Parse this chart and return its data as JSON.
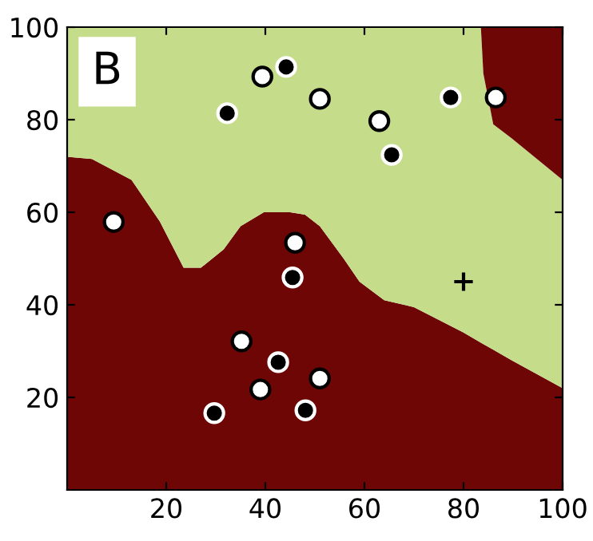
{
  "chart_data": {
    "type": "area",
    "stacked": true,
    "title": "B",
    "xlim": [
      0,
      100
    ],
    "ylim": [
      0,
      100
    ],
    "xticks": [
      20,
      40,
      60,
      80,
      100
    ],
    "yticks": [
      20,
      40,
      60,
      80,
      100
    ],
    "grid": false,
    "legend": false,
    "series": [
      {
        "color": "#6e0606",
        "x": [
          0,
          5,
          13,
          18.7,
          23.5,
          27,
          31.6,
          35,
          39.7,
          45,
          48,
          51,
          55.8,
          59,
          64,
          70,
          80,
          83.5,
          84,
          86,
          89.7,
          100
        ],
        "values": [
          72,
          71.5,
          67,
          58,
          48,
          48,
          52,
          57,
          60,
          60,
          59.5,
          57,
          50,
          45,
          41,
          39.5,
          34,
          31.8,
          31.5,
          30.3,
          28,
          22
        ]
      },
      {
        "color": "#c5dc8a",
        "x": [
          0,
          5,
          13,
          18.7,
          23.5,
          27,
          31.6,
          35,
          39.7,
          45,
          48,
          51,
          55.8,
          59,
          64,
          70,
          80,
          83.5,
          84,
          86,
          89.7,
          100
        ],
        "values": [
          28,
          28.5,
          33,
          42,
          52,
          52,
          48,
          43,
          40,
          40,
          40.5,
          43,
          50,
          55,
          59,
          60.5,
          66,
          68.2,
          58.5,
          48.7,
          48,
          45
        ]
      },
      {
        "color": "#6e0606",
        "x": [
          0,
          5,
          13,
          18.7,
          23.5,
          27,
          31.6,
          35,
          39.7,
          45,
          48,
          51,
          55.8,
          59,
          64,
          70,
          80,
          83.5,
          84,
          86,
          89.7,
          100
        ],
        "values": [
          0,
          0,
          0,
          0,
          0,
          0,
          0,
          0,
          0,
          0,
          0,
          0,
          0,
          0,
          0,
          0,
          0,
          0,
          10,
          21,
          24,
          33
        ]
      },
      {
        "type": "scatter",
        "marker": "circle",
        "color": "#ffffff",
        "x": [
          39.4,
          51,
          63,
          86.5,
          9.4,
          46,
          35.2,
          39,
          51
        ],
        "values": [
          89.3,
          84.5,
          79.7,
          84.8,
          57.9,
          53.4,
          32.1,
          21.7,
          24.1
        ]
      },
      {
        "type": "scatter",
        "marker": "circle",
        "color": "#000000",
        "x": [
          44.2,
          32.3,
          65.5,
          77.4,
          45.5,
          42.6,
          29.7,
          48.1
        ],
        "values": [
          91.4,
          81.4,
          72.4,
          84.8,
          45.9,
          27.6,
          16.6,
          17.2
        ]
      },
      {
        "type": "scatter",
        "marker": "cross",
        "color": "#000000",
        "x": [
          80
        ],
        "values": [
          45
        ]
      }
    ]
  }
}
